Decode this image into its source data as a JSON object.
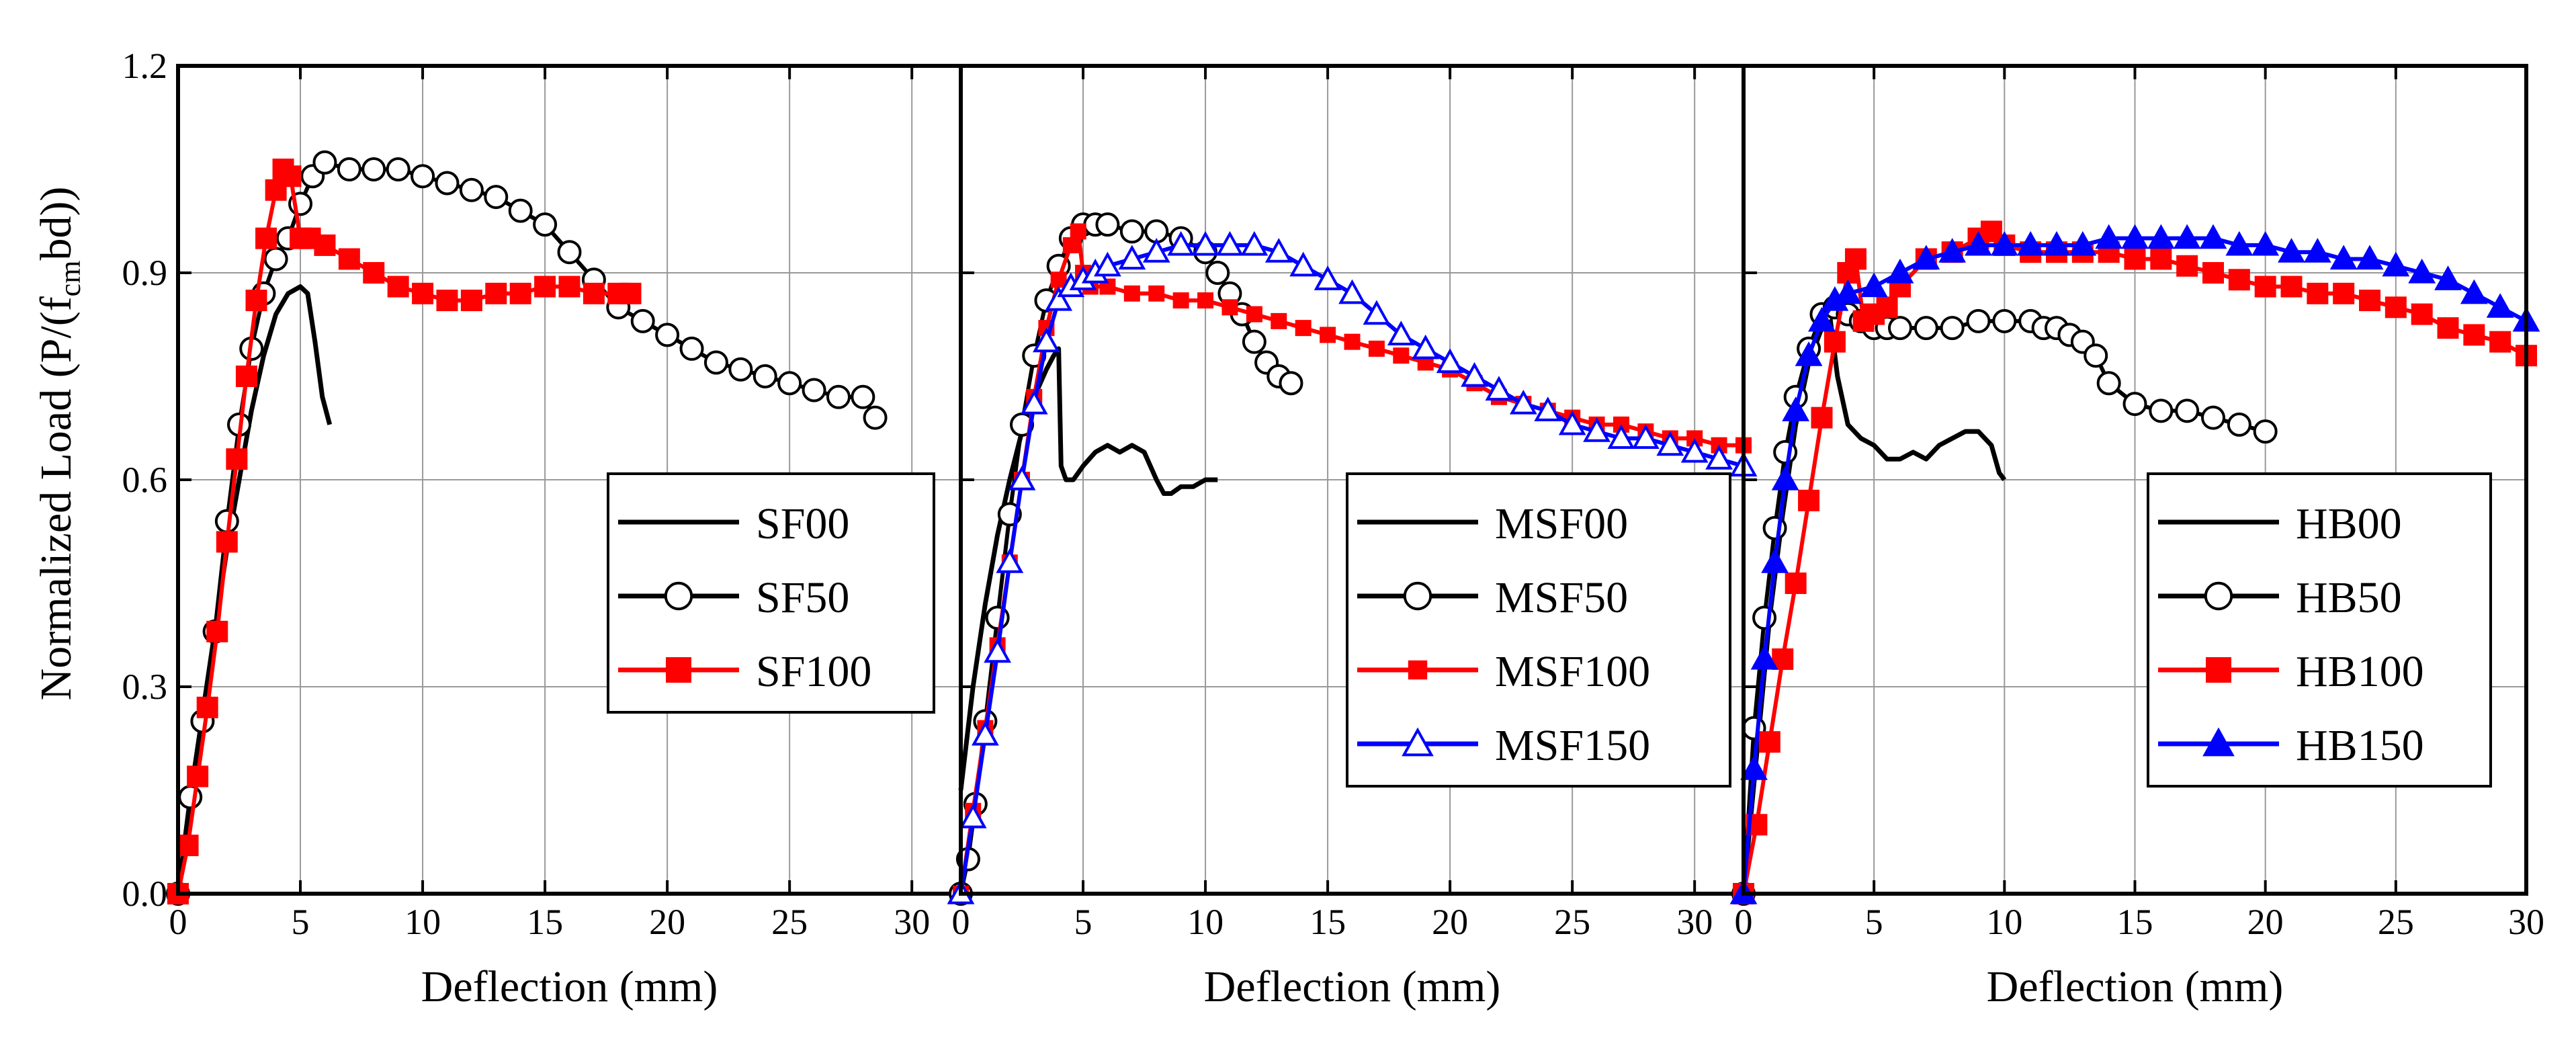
{
  "chart_data": [
    {
      "type": "line",
      "xlabel": "Deflection (mm)",
      "ylabel_main": "Normalized Load (P/(f",
      "ylabel_sub": "cm",
      "ylabel_end": "bd))",
      "xlim": [
        0,
        32
      ],
      "ylim": [
        0,
        1.2
      ],
      "x_ticks": [
        "0",
        "5",
        "10",
        "15",
        "20",
        "25",
        "30"
      ],
      "y_ticks": [
        "0.0",
        "0.3",
        "0.6",
        "0.9",
        "1.2"
      ],
      "legend_position": "center-right",
      "series": [
        {
          "name": "SF00",
          "color": "#000000",
          "marker": "none",
          "x": [
            0,
            0.5,
            1,
            1.5,
            2,
            2.5,
            3,
            3.5,
            4,
            4.5,
            5,
            5.3,
            5.6,
            5.9,
            6.2
          ],
          "y": [
            0,
            0.14,
            0.26,
            0.38,
            0.5,
            0.6,
            0.7,
            0.78,
            0.84,
            0.87,
            0.88,
            0.87,
            0.8,
            0.72,
            0.68
          ]
        },
        {
          "name": "SF50",
          "color": "#000000",
          "marker": "circle",
          "x": [
            0,
            0.5,
            1,
            1.5,
            2,
            2.5,
            3,
            3.5,
            4,
            4.5,
            5,
            5.5,
            6,
            7,
            8,
            9,
            10,
            11,
            12,
            13,
            14,
            15,
            16,
            17,
            18,
            19,
            20,
            21,
            22,
            23,
            24,
            25,
            26,
            27,
            28,
            28.5
          ],
          "y": [
            0,
            0.14,
            0.25,
            0.38,
            0.54,
            0.68,
            0.79,
            0.87,
            0.92,
            0.95,
            1.0,
            1.04,
            1.06,
            1.05,
            1.05,
            1.05,
            1.04,
            1.03,
            1.02,
            1.01,
            0.99,
            0.97,
            0.93,
            0.89,
            0.85,
            0.83,
            0.81,
            0.79,
            0.77,
            0.76,
            0.75,
            0.74,
            0.73,
            0.72,
            0.72,
            0.69
          ]
        },
        {
          "name": "SF100",
          "color": "#ff0000",
          "marker": "square",
          "x": [
            0,
            0.4,
            0.8,
            1.2,
            1.6,
            2,
            2.4,
            2.8,
            3.2,
            3.6,
            4,
            4.3,
            4.6,
            5,
            5.4,
            6,
            7,
            8,
            9,
            10,
            11,
            12,
            13,
            14,
            15,
            16,
            17,
            18,
            18.5
          ],
          "y": [
            0,
            0.07,
            0.17,
            0.27,
            0.38,
            0.51,
            0.63,
            0.75,
            0.86,
            0.95,
            1.02,
            1.05,
            1.04,
            0.95,
            0.95,
            0.94,
            0.92,
            0.9,
            0.88,
            0.87,
            0.86,
            0.86,
            0.87,
            0.87,
            0.88,
            0.88,
            0.87,
            0.87,
            0.87
          ]
        }
      ]
    },
    {
      "type": "line",
      "xlabel": "Deflection (mm)",
      "xlim": [
        0,
        32
      ],
      "ylim": [
        0,
        1.2
      ],
      "x_ticks": [
        "0",
        "5",
        "10",
        "15",
        "20",
        "25",
        "30"
      ],
      "legend_position": "center-right",
      "series": [
        {
          "name": "MSF00",
          "color": "#000000",
          "marker": "none",
          "x": [
            0,
            0.5,
            1,
            1.5,
            2,
            2.5,
            3,
            3.5,
            3.8,
            4,
            4.1,
            4.3,
            4.6,
            5,
            5.5,
            6,
            6.5,
            7,
            7.5,
            8,
            8.3,
            8.6,
            9,
            9.5,
            10,
            10.5
          ],
          "y": [
            0.15,
            0.3,
            0.42,
            0.52,
            0.6,
            0.67,
            0.72,
            0.76,
            0.78,
            0.79,
            0.62,
            0.6,
            0.6,
            0.62,
            0.64,
            0.65,
            0.64,
            0.65,
            0.64,
            0.6,
            0.58,
            0.58,
            0.59,
            0.59,
            0.6,
            0.6
          ]
        },
        {
          "name": "MSF50",
          "color": "#000000",
          "marker": "circle",
          "x": [
            0,
            0.3,
            0.6,
            1,
            1.5,
            2,
            2.5,
            3,
            3.5,
            4,
            4.5,
            5,
            5.5,
            6,
            7,
            8,
            9,
            10,
            10.5,
            11,
            11.5,
            12,
            12.5,
            13,
            13.5
          ],
          "y": [
            0,
            0.05,
            0.13,
            0.25,
            0.4,
            0.55,
            0.68,
            0.78,
            0.86,
            0.91,
            0.95,
            0.97,
            0.97,
            0.97,
            0.96,
            0.96,
            0.95,
            0.93,
            0.9,
            0.87,
            0.84,
            0.8,
            0.77,
            0.75,
            0.74
          ]
        },
        {
          "name": "MSF100",
          "color": "#ff0000",
          "marker": "smallsquare",
          "x": [
            0,
            0.5,
            1,
            1.5,
            2,
            2.5,
            3,
            3.5,
            4,
            4.5,
            4.8,
            5,
            5.3,
            6,
            7,
            8,
            9,
            10,
            11,
            12,
            13,
            14,
            15,
            16,
            17,
            18,
            19,
            20,
            21,
            22,
            23,
            24,
            25,
            26,
            27,
            28,
            29,
            30,
            31,
            32
          ],
          "y": [
            0,
            0.12,
            0.24,
            0.36,
            0.48,
            0.6,
            0.72,
            0.82,
            0.89,
            0.94,
            0.96,
            0.9,
            0.88,
            0.88,
            0.87,
            0.87,
            0.86,
            0.86,
            0.85,
            0.84,
            0.83,
            0.82,
            0.81,
            0.8,
            0.79,
            0.78,
            0.77,
            0.76,
            0.74,
            0.72,
            0.71,
            0.7,
            0.69,
            0.68,
            0.68,
            0.67,
            0.66,
            0.66,
            0.65,
            0.65
          ]
        },
        {
          "name": "MSF150",
          "color": "#0000ff",
          "marker": "triangle",
          "x": [
            0,
            0.5,
            1,
            1.5,
            2,
            2.5,
            3,
            3.5,
            4,
            4.5,
            5,
            5.5,
            6,
            7,
            8,
            9,
            10,
            11,
            12,
            13,
            14,
            15,
            16,
            17,
            18,
            19,
            20,
            21,
            22,
            23,
            24,
            25,
            26,
            27,
            28,
            29,
            30,
            31,
            32
          ],
          "y": [
            0,
            0.11,
            0.23,
            0.35,
            0.48,
            0.6,
            0.71,
            0.8,
            0.86,
            0.88,
            0.89,
            0.9,
            0.91,
            0.92,
            0.93,
            0.94,
            0.94,
            0.94,
            0.94,
            0.93,
            0.91,
            0.89,
            0.87,
            0.84,
            0.81,
            0.79,
            0.77,
            0.75,
            0.73,
            0.71,
            0.7,
            0.68,
            0.67,
            0.66,
            0.66,
            0.65,
            0.64,
            0.63,
            0.62
          ]
        }
      ]
    },
    {
      "type": "line",
      "xlabel": "Deflection (mm)",
      "xlim": [
        0,
        30
      ],
      "ylim": [
        0,
        1.2
      ],
      "x_ticks": [
        "0",
        "5",
        "10",
        "15",
        "20",
        "25",
        "30"
      ],
      "legend_position": "center-right",
      "series": [
        {
          "name": "HB00",
          "color": "#000000",
          "marker": "none",
          "x": [
            0,
            0.5,
            1,
            1.5,
            2,
            2.5,
            3,
            3.3,
            3.6,
            4,
            4.5,
            5,
            5.5,
            6,
            6.5,
            7,
            7.5,
            8,
            8.5,
            9,
            9.5,
            9.8,
            10
          ],
          "y": [
            0,
            0.2,
            0.4,
            0.55,
            0.68,
            0.77,
            0.82,
            0.84,
            0.75,
            0.68,
            0.66,
            0.65,
            0.63,
            0.63,
            0.64,
            0.63,
            0.65,
            0.66,
            0.67,
            0.67,
            0.65,
            0.61,
            0.6
          ]
        },
        {
          "name": "HB50",
          "color": "#000000",
          "marker": "circle",
          "x": [
            0,
            0.4,
            0.8,
            1.2,
            1.6,
            2,
            2.5,
            3,
            3.5,
            4,
            4.5,
            5,
            5.5,
            6,
            7,
            8,
            9,
            10,
            11,
            11.5,
            12,
            12.5,
            13,
            13.5,
            14,
            15,
            16,
            17,
            18,
            19,
            20
          ],
          "y": [
            0,
            0.24,
            0.4,
            0.53,
            0.64,
            0.72,
            0.79,
            0.84,
            0.85,
            0.84,
            0.83,
            0.82,
            0.82,
            0.82,
            0.82,
            0.82,
            0.83,
            0.83,
            0.83,
            0.82,
            0.82,
            0.81,
            0.8,
            0.78,
            0.74,
            0.71,
            0.7,
            0.7,
            0.69,
            0.68,
            0.67
          ]
        },
        {
          "name": "HB100",
          "color": "#ff0000",
          "marker": "square",
          "x": [
            0,
            0.5,
            1,
            1.5,
            2,
            2.5,
            3,
            3.5,
            4,
            4.3,
            4.6,
            5,
            5.5,
            6,
            7,
            8,
            9,
            9.5,
            10,
            11,
            12,
            13,
            14,
            15,
            16,
            17,
            18,
            19,
            20,
            21,
            22,
            23,
            24,
            25,
            26,
            27,
            28,
            29,
            30
          ],
          "y": [
            0,
            0.1,
            0.22,
            0.34,
            0.45,
            0.57,
            0.69,
            0.8,
            0.9,
            0.92,
            0.83,
            0.84,
            0.85,
            0.88,
            0.92,
            0.93,
            0.95,
            0.96,
            0.94,
            0.93,
            0.93,
            0.93,
            0.93,
            0.92,
            0.92,
            0.91,
            0.9,
            0.89,
            0.88,
            0.88,
            0.87,
            0.87,
            0.86,
            0.85,
            0.84,
            0.82,
            0.81,
            0.8,
            0.78
          ]
        },
        {
          "name": "HB150",
          "color": "#0000ff",
          "marker": "triangle",
          "x": [
            0,
            0.4,
            0.8,
            1.2,
            1.6,
            2,
            2.5,
            3,
            3.5,
            4,
            5,
            6,
            7,
            8,
            9,
            10,
            11,
            12,
            13,
            14,
            15,
            16,
            17,
            18,
            19,
            20,
            21,
            22,
            23,
            24,
            25,
            26,
            27,
            28,
            29,
            30
          ],
          "y": [
            0,
            0.18,
            0.34,
            0.48,
            0.6,
            0.7,
            0.78,
            0.83,
            0.86,
            0.87,
            0.88,
            0.9,
            0.92,
            0.93,
            0.94,
            0.94,
            0.94,
            0.94,
            0.94,
            0.95,
            0.95,
            0.95,
            0.95,
            0.95,
            0.94,
            0.94,
            0.93,
            0.93,
            0.92,
            0.92,
            0.91,
            0.9,
            0.89,
            0.87,
            0.85,
            0.83
          ]
        }
      ]
    }
  ]
}
